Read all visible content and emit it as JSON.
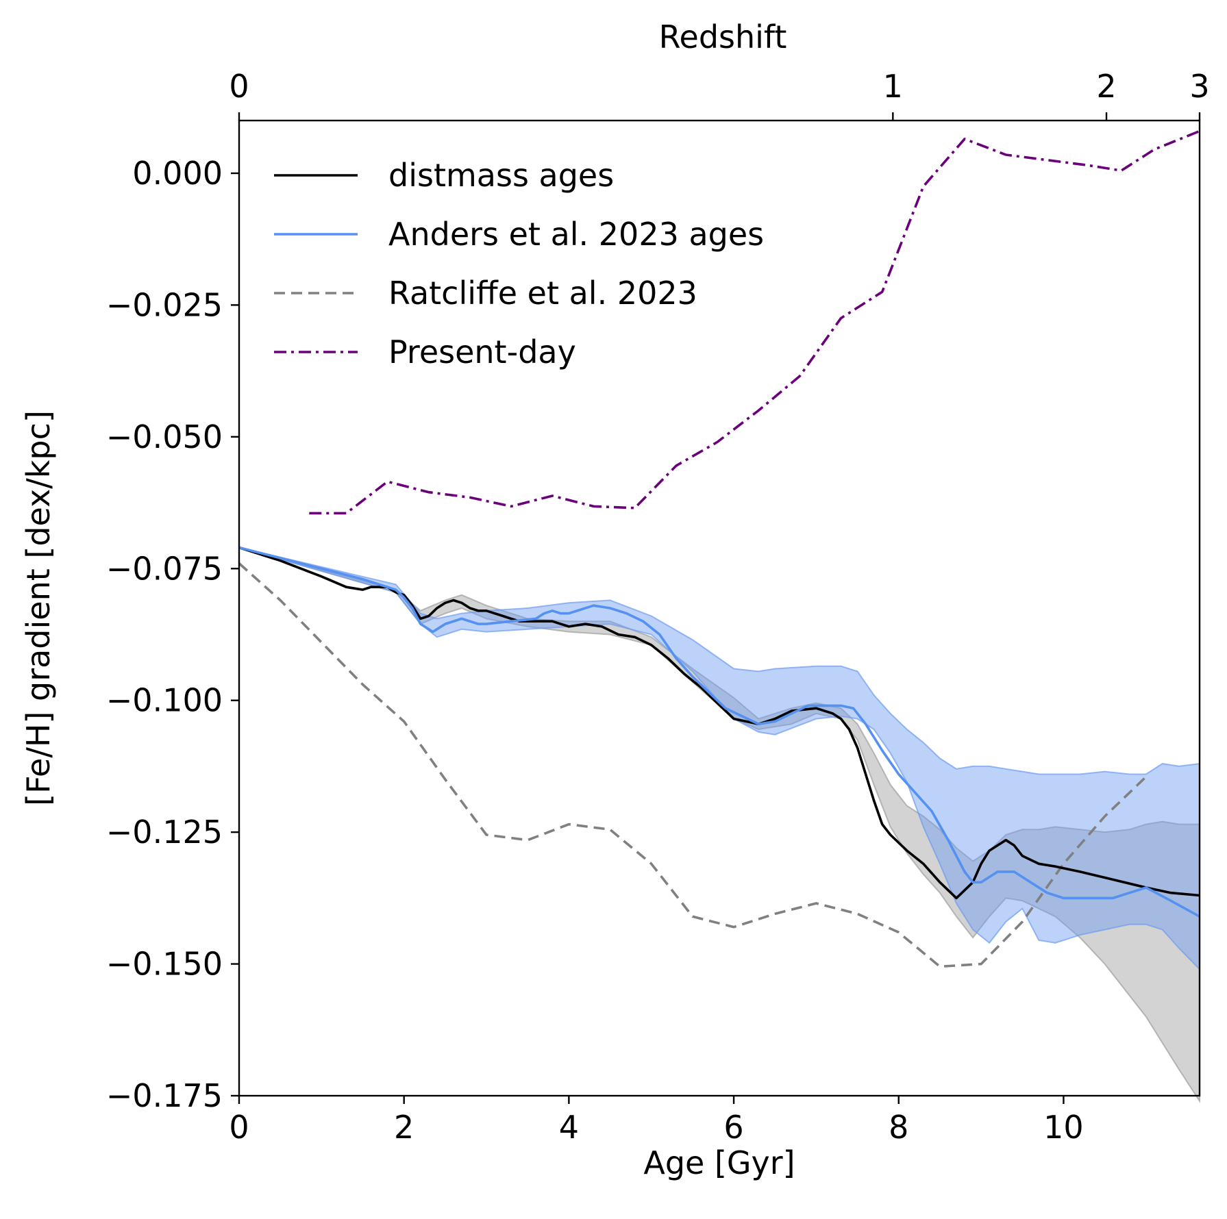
{
  "chart_data": {
    "type": "line",
    "xlabel": "Age [Gyr]",
    "ylabel": "[Fe/H] gradient [dex/kpc]",
    "top_xlabel": "Redshift",
    "xlim": [
      0,
      11.65
    ],
    "ylim": [
      -0.175,
      0.01
    ],
    "x_ticks": [
      {
        "v": 0,
        "label": "0"
      },
      {
        "v": 2,
        "label": "2"
      },
      {
        "v": 4,
        "label": "4"
      },
      {
        "v": 6,
        "label": "6"
      },
      {
        "v": 8,
        "label": "8"
      },
      {
        "v": 10,
        "label": "10"
      }
    ],
    "y_ticks": [
      {
        "v": 0.0,
        "label": "0.000"
      },
      {
        "v": -0.025,
        "label": "−0.025"
      },
      {
        "v": -0.05,
        "label": "−0.050"
      },
      {
        "v": -0.075,
        "label": "−0.075"
      },
      {
        "v": -0.1,
        "label": "−0.100"
      },
      {
        "v": -0.125,
        "label": "−0.125"
      },
      {
        "v": -0.15,
        "label": "−0.150"
      },
      {
        "v": -0.175,
        "label": "−0.175"
      }
    ],
    "top_ticks": [
      {
        "age": 0,
        "label": "0"
      },
      {
        "age": 7.93,
        "label": "1"
      },
      {
        "age": 10.52,
        "label": "2"
      },
      {
        "age": 11.65,
        "label": "3"
      }
    ],
    "legend_position": "upper-left",
    "series": [
      {
        "name": "distmass ages",
        "color": "#000000",
        "style": "solid",
        "x": [
          0.0,
          0.5,
          1.0,
          1.3,
          1.5,
          1.6,
          1.7,
          1.8,
          1.9,
          2.0,
          2.1,
          2.2,
          2.3,
          2.4,
          2.5,
          2.6,
          2.7,
          2.8,
          2.9,
          3.0,
          3.1,
          3.2,
          3.3,
          3.4,
          3.5,
          3.6,
          3.7,
          3.8,
          3.9,
          4.0,
          4.2,
          4.4,
          4.6,
          4.8,
          5.0,
          5.2,
          5.4,
          5.6,
          5.8,
          6.0,
          6.3,
          6.5,
          6.7,
          7.0,
          7.2,
          7.3,
          7.4,
          7.5,
          7.6,
          7.7,
          7.8,
          7.9,
          8.0,
          8.1,
          8.3,
          8.5,
          8.7,
          8.9,
          9.0,
          9.1,
          9.2,
          9.3,
          9.4,
          9.5,
          9.7,
          9.9,
          10.2,
          10.6,
          11.0,
          11.3,
          11.65
        ],
        "y": [
          -0.071,
          -0.0735,
          -0.0765,
          -0.0785,
          -0.079,
          -0.0785,
          -0.0785,
          -0.0785,
          -0.0795,
          -0.08,
          -0.082,
          -0.0845,
          -0.084,
          -0.0825,
          -0.0815,
          -0.081,
          -0.0815,
          -0.0825,
          -0.083,
          -0.083,
          -0.0835,
          -0.084,
          -0.0845,
          -0.085,
          -0.085,
          -0.085,
          -0.085,
          -0.085,
          -0.0855,
          -0.086,
          -0.0855,
          -0.086,
          -0.0875,
          -0.088,
          -0.0895,
          -0.092,
          -0.095,
          -0.0975,
          -0.1005,
          -0.1035,
          -0.1045,
          -0.1035,
          -0.102,
          -0.1015,
          -0.1025,
          -0.1035,
          -0.1055,
          -0.109,
          -0.114,
          -0.119,
          -0.1235,
          -0.1255,
          -0.127,
          -0.1285,
          -0.131,
          -0.1345,
          -0.1375,
          -0.1345,
          -0.131,
          -0.1285,
          -0.1275,
          -0.1265,
          -0.1275,
          -0.1295,
          -0.131,
          -0.1315,
          -0.1325,
          -0.134,
          -0.1355,
          -0.1365,
          -0.137
        ]
      },
      {
        "name": "Anders et al. 2023 ages",
        "color": "#5591f0",
        "style": "solid",
        "x": [
          0.0,
          0.5,
          1.0,
          1.5,
          1.9,
          2.0,
          2.1,
          2.2,
          2.35,
          2.5,
          2.7,
          2.9,
          3.0,
          3.3,
          3.6,
          3.7,
          3.8,
          3.9,
          4.0,
          4.1,
          4.3,
          4.5,
          4.7,
          4.9,
          5.1,
          5.3,
          5.5,
          5.7,
          5.9,
          6.1,
          6.3,
          6.5,
          6.7,
          6.9,
          7.1,
          7.3,
          7.45,
          7.6,
          7.8,
          8.0,
          8.2,
          8.4,
          8.6,
          8.8,
          8.9,
          9.0,
          9.1,
          9.2,
          9.3,
          9.4,
          9.5,
          9.6,
          9.8,
          10.0,
          10.2,
          10.4,
          10.6,
          10.8,
          11.0,
          11.3,
          11.65
        ],
        "y": [
          -0.071,
          -0.073,
          -0.075,
          -0.077,
          -0.079,
          -0.0805,
          -0.0825,
          -0.0855,
          -0.087,
          -0.0855,
          -0.0845,
          -0.0855,
          -0.0855,
          -0.085,
          -0.0845,
          -0.0835,
          -0.083,
          -0.0835,
          -0.0835,
          -0.083,
          -0.082,
          -0.0825,
          -0.0835,
          -0.085,
          -0.0875,
          -0.092,
          -0.0955,
          -0.0985,
          -0.1015,
          -0.103,
          -0.1045,
          -0.104,
          -0.1025,
          -0.101,
          -0.101,
          -0.101,
          -0.1015,
          -0.1045,
          -0.1095,
          -0.114,
          -0.1175,
          -0.121,
          -0.1265,
          -0.1325,
          -0.1345,
          -0.1345,
          -0.1335,
          -0.1325,
          -0.1325,
          -0.1325,
          -0.1335,
          -0.1345,
          -0.1365,
          -0.1375,
          -0.1375,
          -0.1375,
          -0.1375,
          -0.1365,
          -0.1355,
          -0.138,
          -0.141
        ]
      },
      {
        "name": "Ratcliffe et al. 2023",
        "color": "#808080",
        "style": "dashed",
        "x": [
          0.0,
          0.5,
          1.0,
          1.5,
          2.0,
          2.5,
          3.0,
          3.5,
          4.0,
          4.5,
          5.0,
          5.5,
          6.0,
          6.5,
          7.0,
          7.5,
          8.0,
          8.5,
          9.0,
          9.5,
          10.0,
          10.5,
          11.0
        ],
        "y": [
          -0.074,
          -0.081,
          -0.089,
          -0.097,
          -0.104,
          -0.115,
          -0.1255,
          -0.1265,
          -0.1235,
          -0.1245,
          -0.131,
          -0.141,
          -0.143,
          -0.1405,
          -0.1385,
          -0.1405,
          -0.144,
          -0.1505,
          -0.15,
          -0.142,
          -0.131,
          -0.122,
          -0.1145
        ]
      },
      {
        "name": "Present-day",
        "color": "#6a007a",
        "style": "dashdot",
        "x": [
          0.85,
          1.3,
          1.8,
          2.3,
          2.8,
          3.3,
          3.8,
          4.3,
          4.8,
          5.3,
          5.8,
          6.3,
          6.8,
          7.3,
          7.8,
          8.3,
          8.8,
          9.3,
          9.8,
          10.3,
          10.7,
          11.1,
          11.65
        ],
        "y": [
          -0.0645,
          -0.0645,
          -0.0585,
          -0.0605,
          -0.0615,
          -0.0632,
          -0.0612,
          -0.0632,
          -0.0635,
          -0.0555,
          -0.051,
          -0.045,
          -0.0385,
          -0.0275,
          -0.0225,
          -0.0025,
          0.0065,
          0.0035,
          0.0025,
          0.0015,
          0.0005,
          0.0045,
          0.008
        ]
      }
    ],
    "bands": [
      {
        "of": "distmass ages",
        "color": "#9e9e9e",
        "x": [
          0.0,
          1.9,
          2.2,
          2.5,
          2.7,
          3.0,
          3.5,
          4.0,
          4.5,
          5.0,
          5.5,
          6.0,
          6.3,
          6.7,
          7.0,
          7.3,
          7.5,
          7.7,
          7.9,
          8.1,
          8.3,
          8.5,
          8.7,
          8.9,
          9.1,
          9.3,
          9.5,
          9.7,
          9.9,
          10.2,
          10.5,
          10.8,
          11.0,
          11.2,
          11.4,
          11.65
        ],
        "upper": [
          -0.071,
          -0.079,
          -0.083,
          -0.081,
          -0.08,
          -0.082,
          -0.0845,
          -0.085,
          -0.085,
          -0.088,
          -0.094,
          -0.0995,
          -0.1035,
          -0.1015,
          -0.1005,
          -0.1015,
          -0.1045,
          -0.11,
          -0.116,
          -0.12,
          -0.122,
          -0.1245,
          -0.128,
          -0.1305,
          -0.1285,
          -0.1255,
          -0.1245,
          -0.1245,
          -0.124,
          -0.1245,
          -0.125,
          -0.1245,
          -0.1235,
          -0.123,
          -0.1235,
          -0.1235
        ],
        "lower": [
          -0.071,
          -0.0795,
          -0.0855,
          -0.0835,
          -0.0825,
          -0.0845,
          -0.086,
          -0.087,
          -0.0875,
          -0.0895,
          -0.0965,
          -0.1035,
          -0.1055,
          -0.1045,
          -0.1025,
          -0.1035,
          -0.1075,
          -0.116,
          -0.124,
          -0.129,
          -0.133,
          -0.1365,
          -0.141,
          -0.145,
          -0.141,
          -0.1375,
          -0.138,
          -0.1395,
          -0.141,
          -0.145,
          -0.15,
          -0.156,
          -0.16,
          -0.165,
          -0.17,
          -0.176
        ]
      },
      {
        "of": "Anders et al. 2023 ages",
        "color": "#6d9bf2",
        "x": [
          0.0,
          1.9,
          2.2,
          2.4,
          2.7,
          3.0,
          3.5,
          4.0,
          4.5,
          5.0,
          5.5,
          6.0,
          6.3,
          6.5,
          7.0,
          7.3,
          7.5,
          7.7,
          7.9,
          8.1,
          8.3,
          8.5,
          8.7,
          8.9,
          9.1,
          9.3,
          9.5,
          9.7,
          9.9,
          10.2,
          10.5,
          10.8,
          11.0,
          11.2,
          11.4,
          11.65
        ],
        "upper": [
          -0.071,
          -0.078,
          -0.0835,
          -0.0845,
          -0.0835,
          -0.083,
          -0.0825,
          -0.0815,
          -0.081,
          -0.084,
          -0.0885,
          -0.094,
          -0.0945,
          -0.094,
          -0.0935,
          -0.0935,
          -0.0945,
          -0.099,
          -0.1025,
          -0.1055,
          -0.108,
          -0.111,
          -0.113,
          -0.1125,
          -0.1125,
          -0.113,
          -0.1135,
          -0.114,
          -0.114,
          -0.114,
          -0.1135,
          -0.114,
          -0.114,
          -0.112,
          -0.1125,
          -0.112
        ],
        "lower": [
          -0.071,
          -0.0795,
          -0.0855,
          -0.088,
          -0.0865,
          -0.087,
          -0.0865,
          -0.086,
          -0.0855,
          -0.0875,
          -0.0945,
          -0.1035,
          -0.106,
          -0.1065,
          -0.1035,
          -0.103,
          -0.1035,
          -0.1055,
          -0.11,
          -0.1155,
          -0.124,
          -0.131,
          -0.1385,
          -0.1435,
          -0.146,
          -0.142,
          -0.1395,
          -0.1455,
          -0.146,
          -0.1445,
          -0.1435,
          -0.1425,
          -0.1425,
          -0.1435,
          -0.147,
          -0.151
        ]
      }
    ]
  }
}
